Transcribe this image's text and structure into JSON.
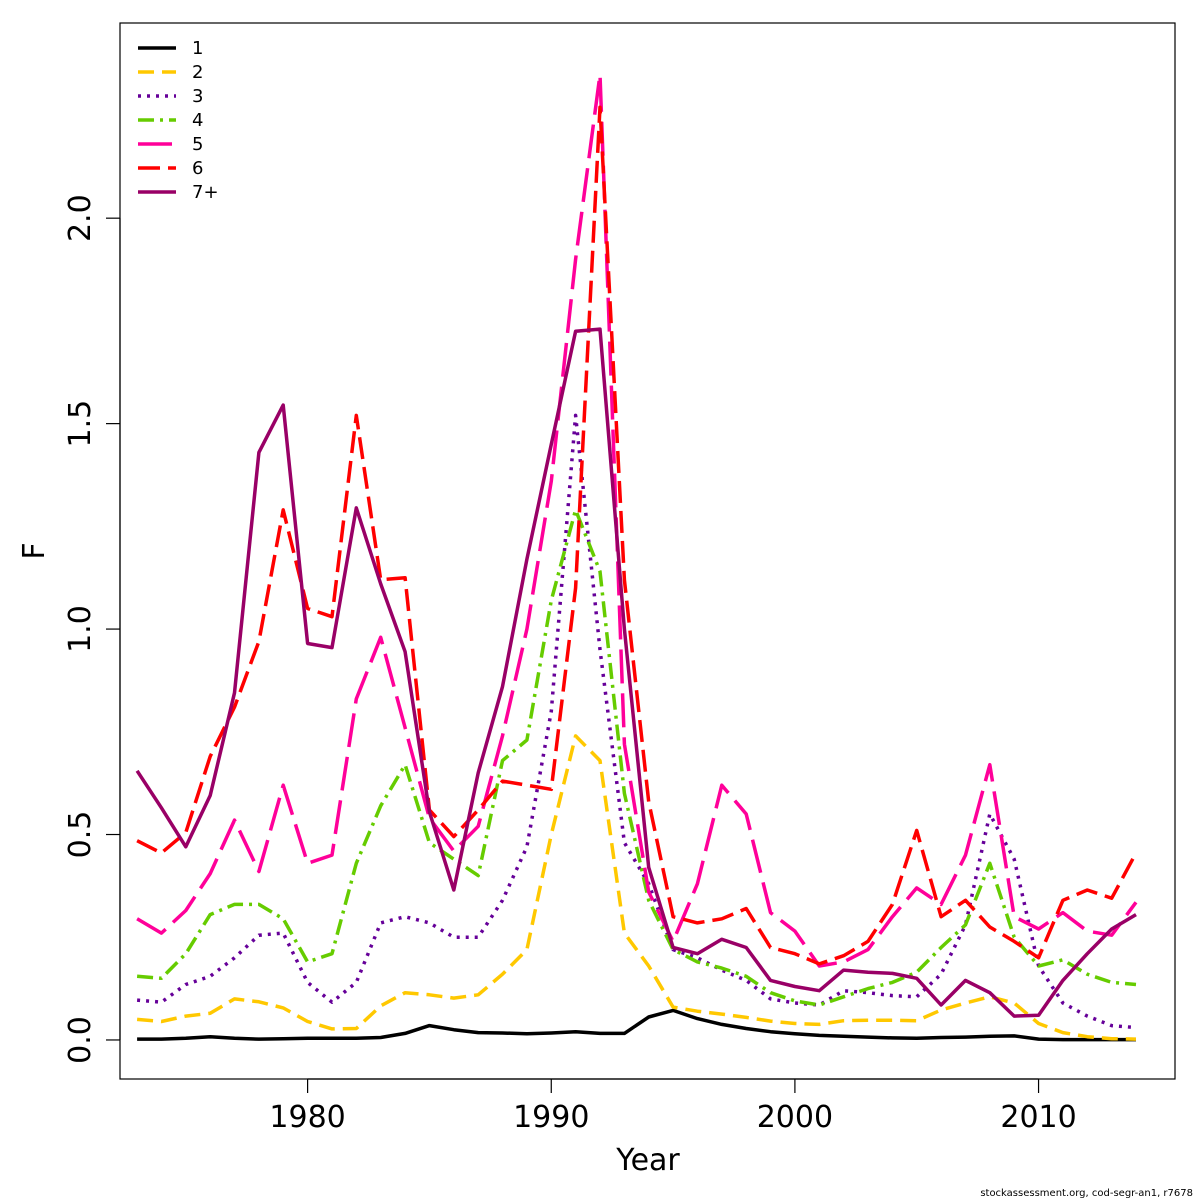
{
  "chart_data": {
    "type": "line",
    "xlabel": "Year",
    "ylabel": "F",
    "xlim": [
      1972.3,
      2015.6
    ],
    "ylim": [
      -0.095,
      2.475
    ],
    "xticks": [
      "1980",
      "1990",
      "2000",
      "2010"
    ],
    "xtick_values": [
      1980,
      1990,
      2000,
      2010
    ],
    "yticks": [
      "0.0",
      "0.5",
      "1.0",
      "1.5",
      "2.0"
    ],
    "ytick_values": [
      0,
      0.5,
      1.0,
      1.5,
      2.0
    ],
    "legend_position": "top-left",
    "grid": false,
    "x": [
      1973,
      1974,
      1975,
      1976,
      1977,
      1978,
      1979,
      1980,
      1981,
      1982,
      1983,
      1984,
      1985,
      1986,
      1987,
      1988,
      1989,
      1990,
      1991,
      1992,
      1993,
      1994,
      1995,
      1996,
      1997,
      1998,
      1999,
      2000,
      2001,
      2002,
      2003,
      2004,
      2005,
      2006,
      2007,
      2008,
      2009,
      2010,
      2011,
      2012,
      2013,
      2014
    ],
    "series": [
      {
        "name": "1",
        "color": "#000000",
        "dash": "",
        "width": 3.5,
        "values": [
          0.002,
          0.002,
          0.004,
          0.008,
          0.004,
          0.002,
          0.003,
          0.004,
          0.004,
          0.004,
          0.006,
          0.016,
          0.035,
          0.025,
          0.018,
          0.017,
          0.015,
          0.017,
          0.02,
          0.016,
          0.016,
          0.056,
          0.072,
          0.052,
          0.038,
          0.028,
          0.02,
          0.015,
          0.011,
          0.009,
          0.007,
          0.005,
          0.004,
          0.006,
          0.007,
          0.009,
          0.01,
          0.002,
          0.001,
          0.001,
          0.001,
          0.001
        ]
      },
      {
        "name": "2",
        "color": "#FFC800",
        "dash": "16,8",
        "width": 3.5,
        "values": [
          0.05,
          0.045,
          0.058,
          0.065,
          0.1,
          0.093,
          0.078,
          0.045,
          0.027,
          0.028,
          0.083,
          0.115,
          0.11,
          0.102,
          0.11,
          0.16,
          0.22,
          0.5,
          0.74,
          0.68,
          0.26,
          0.18,
          0.08,
          0.07,
          0.063,
          0.055,
          0.046,
          0.04,
          0.038,
          0.047,
          0.048,
          0.048,
          0.047,
          0.073,
          0.09,
          0.105,
          0.09,
          0.04,
          0.018,
          0.008,
          0.003,
          0.002
        ]
      },
      {
        "name": "3",
        "color": "#660099",
        "dash": "3,6",
        "width": 3.5,
        "values": [
          0.097,
          0.092,
          0.135,
          0.155,
          0.2,
          0.255,
          0.26,
          0.14,
          0.092,
          0.14,
          0.285,
          0.3,
          0.285,
          0.25,
          0.25,
          0.34,
          0.47,
          0.8,
          1.52,
          0.95,
          0.48,
          0.38,
          0.22,
          0.2,
          0.17,
          0.145,
          0.1,
          0.09,
          0.085,
          0.12,
          0.115,
          0.108,
          0.105,
          0.16,
          0.28,
          0.55,
          0.44,
          0.18,
          0.09,
          0.058,
          0.035,
          0.03
        ]
      },
      {
        "name": "4",
        "color": "#66CC00",
        "dash": "16,6,3,6",
        "width": 3.5,
        "values": [
          0.155,
          0.15,
          0.21,
          0.305,
          0.33,
          0.33,
          0.295,
          0.19,
          0.21,
          0.43,
          0.57,
          0.67,
          0.48,
          0.44,
          0.4,
          0.68,
          0.73,
          1.07,
          1.29,
          1.14,
          0.6,
          0.34,
          0.22,
          0.19,
          0.175,
          0.155,
          0.115,
          0.095,
          0.085,
          0.105,
          0.125,
          0.14,
          0.165,
          0.225,
          0.28,
          0.43,
          0.25,
          0.18,
          0.195,
          0.16,
          0.14,
          0.135
        ]
      },
      {
        "name": "5",
        "color": "#FF0099",
        "dash": "34,10",
        "width": 3.5,
        "values": [
          0.295,
          0.26,
          0.315,
          0.405,
          0.535,
          0.41,
          0.62,
          0.43,
          0.45,
          0.83,
          0.98,
          0.76,
          0.54,
          0.46,
          0.52,
          0.74,
          1.0,
          1.36,
          1.9,
          2.35,
          0.72,
          0.36,
          0.24,
          0.38,
          0.62,
          0.55,
          0.31,
          0.265,
          0.18,
          0.19,
          0.22,
          0.3,
          0.37,
          0.33,
          0.45,
          0.67,
          0.3,
          0.27,
          0.31,
          0.265,
          0.255,
          0.335
        ]
      },
      {
        "name": "6",
        "color": "#FF0000",
        "dash": "22,8",
        "width": 3.5,
        "values": [
          0.485,
          0.455,
          0.505,
          0.69,
          0.81,
          0.97,
          1.29,
          1.05,
          1.03,
          1.52,
          1.12,
          1.125,
          0.56,
          0.495,
          0.56,
          0.63,
          0.62,
          0.61,
          1.1,
          2.27,
          1.12,
          0.58,
          0.3,
          0.285,
          0.295,
          0.32,
          0.225,
          0.21,
          0.185,
          0.205,
          0.24,
          0.33,
          0.51,
          0.3,
          0.34,
          0.275,
          0.24,
          0.2,
          0.34,
          0.365,
          0.345,
          0.455
        ]
      },
      {
        "name": "7+",
        "color": "#990066",
        "dash": "",
        "width": 3.5,
        "values": [
          0.655,
          0.565,
          0.47,
          0.595,
          0.845,
          1.43,
          1.545,
          0.965,
          0.955,
          1.295,
          1.11,
          0.945,
          0.555,
          0.365,
          0.65,
          0.86,
          1.17,
          1.45,
          1.725,
          1.73,
          1.0,
          0.42,
          0.225,
          0.21,
          0.245,
          0.225,
          0.145,
          0.13,
          0.12,
          0.17,
          0.165,
          0.162,
          0.15,
          0.085,
          0.145,
          0.115,
          0.058,
          0.06,
          0.145,
          0.21,
          0.27,
          0.305
        ]
      }
    ]
  },
  "credit": "stockassessment.org, cod-segr-an1, r7678"
}
